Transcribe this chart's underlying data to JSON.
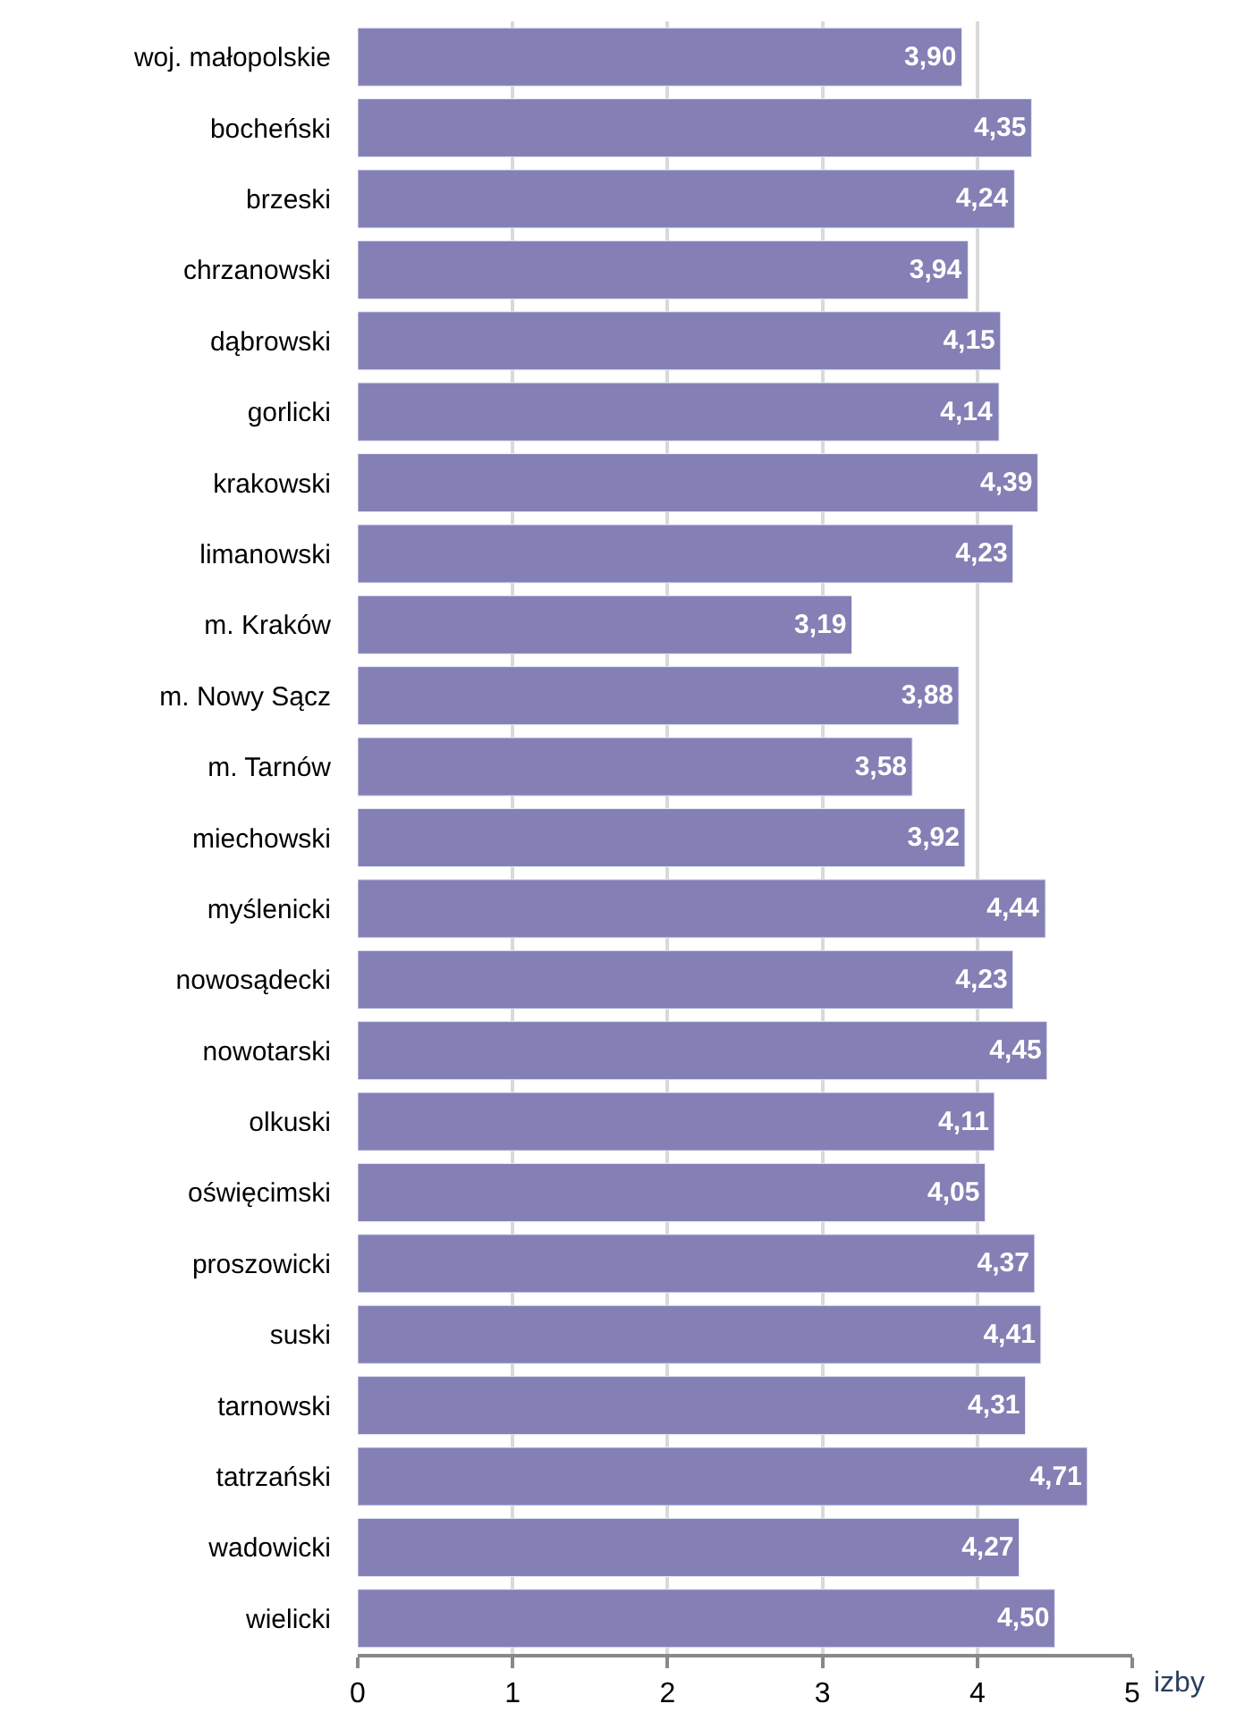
{
  "chart_data": {
    "type": "bar",
    "orientation": "horizontal",
    "xlabel": "izby",
    "categories": [
      "woj. małopolskie",
      "bocheński",
      "brzeski",
      "chrzanowski",
      "dąbrowski",
      "gorlicki",
      "krakowski",
      "limanowski",
      "m. Kraków",
      "m. Nowy Sącz",
      "m. Tarnów",
      "miechowski",
      "myślenicki",
      "nowosądecki",
      "nowotarski",
      "olkuski",
      "oświęcimski",
      "proszowicki",
      "suski",
      "tarnowski",
      "tatrzański",
      "wadowicki",
      "wielicki"
    ],
    "values": [
      3.9,
      4.35,
      4.24,
      3.94,
      4.15,
      4.14,
      4.39,
      4.23,
      3.19,
      3.88,
      3.58,
      3.92,
      4.44,
      4.23,
      4.45,
      4.11,
      4.05,
      4.37,
      4.41,
      4.31,
      4.71,
      4.27,
      4.5
    ],
    "value_labels": [
      "3,90",
      "4,35",
      "4,24",
      "3,94",
      "4,15",
      "4,14",
      "4,39",
      "4,23",
      "3,19",
      "3,88",
      "3,58",
      "3,92",
      "4,44",
      "4,23",
      "4,45",
      "4,11",
      "4,05",
      "4,37",
      "4,41",
      "4,31",
      "4,71",
      "4,27",
      "4,50"
    ],
    "color": "#8480b6",
    "xlim": [
      0,
      5
    ],
    "xticks": [
      0,
      1,
      2,
      3,
      4,
      5
    ],
    "grid": "x",
    "legend": false
  }
}
